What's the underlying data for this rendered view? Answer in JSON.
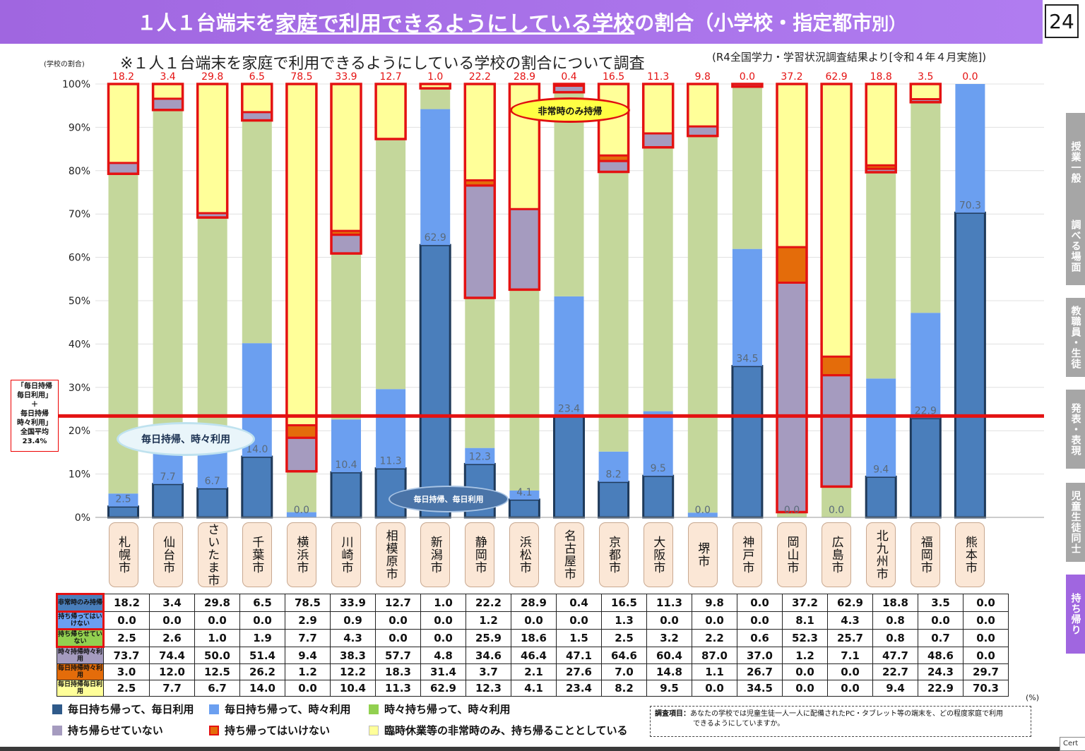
{
  "header": {
    "title_pre": "１人１台端末を",
    "title_hl": "家庭で利用できるようにしている学校",
    "title_post": "の割合（小学校・指定都市",
    "title_tail": "別）",
    "page_num": "24"
  },
  "subtitle": "※１人１台端末を家庭で利用できるようにしている学校の割合について調査",
  "subnote": "(R4全国学力・学習状況調査結果より[令和４年４月実施])",
  "side_tabs": [
    "授業一般",
    "調べる場面",
    "教職員・生徒",
    "発表・表現",
    "児童生徒同士",
    "持ち帰り"
  ],
  "average_box": {
    "lines": [
      "「毎日持帰",
      "毎日利用」",
      "＋",
      "毎日持帰",
      "時々利用」",
      "全国平均",
      "23.4%"
    ]
  },
  "annotations": {
    "oval1": "毎日持帰、時々利用",
    "oval2": "毎日持帰、毎日利用",
    "oval3": "非常時のみ持帰"
  },
  "colors": {
    "daily_daily": "#4a7ebb",
    "daily_some": "#6b9ff0",
    "some_some": "#c4d79b",
    "not_allowed_take": "#a59bbf",
    "forbidden": "#e46c0a",
    "emergency_only": "#ffff99",
    "highlight": "#e41212"
  },
  "chart_data": {
    "type": "bar",
    "stacked": true,
    "ylabel": "(学校の割合)",
    "ylim": [
      0,
      100
    ],
    "yticks": [
      "0%",
      "10%",
      "20%",
      "30%",
      "40%",
      "50%",
      "60%",
      "70%",
      "80%",
      "90%",
      "100%"
    ],
    "unit": "(%)",
    "reference_line": {
      "value": 23.4
    },
    "categories": [
      "札幌市",
      "仙台市",
      "さいたま市",
      "千葉市",
      "横浜市",
      "川崎市",
      "相模原市",
      "新潟市",
      "静岡市",
      "浜松市",
      "名古屋市",
      "京都市",
      "大阪市",
      "堺市",
      "神戸市",
      "岡山市",
      "広島市",
      "北九州市",
      "福岡市",
      "熊本市"
    ],
    "series": [
      {
        "name": "毎日持ち帰って、毎日利用",
        "row_label": "毎日持帰毎日利用",
        "values": [
          2.5,
          7.7,
          6.7,
          14.0,
          0.0,
          10.4,
          11.3,
          62.9,
          12.3,
          4.1,
          23.4,
          8.2,
          9.5,
          0.0,
          34.5,
          0.0,
          0.0,
          9.4,
          22.9,
          70.3
        ]
      },
      {
        "name": "毎日持ち帰って、時々利用",
        "row_label": "毎日持帰時々利用",
        "values": [
          3.0,
          12.0,
          12.5,
          26.2,
          1.2,
          12.2,
          18.3,
          31.4,
          3.7,
          2.1,
          27.6,
          7.0,
          14.8,
          1.1,
          26.7,
          0.0,
          0.0,
          22.7,
          24.3,
          29.7
        ]
      },
      {
        "name": "時々持ち帰って、時々利用",
        "row_label": "時々持帰時々利用",
        "values": [
          73.7,
          74.4,
          50.0,
          51.4,
          9.4,
          38.3,
          57.7,
          4.8,
          34.6,
          46.4,
          47.1,
          64.6,
          60.4,
          87.0,
          37.0,
          1.2,
          7.1,
          47.7,
          48.6,
          0.0
        ]
      },
      {
        "name": "持ち帰らせていない",
        "row_label": "持ち帰らせていない",
        "values": [
          2.5,
          2.6,
          1.0,
          1.9,
          7.7,
          4.3,
          0.0,
          0.0,
          25.9,
          18.6,
          1.5,
          2.5,
          3.2,
          2.2,
          0.6,
          52.3,
          25.7,
          0.8,
          0.7,
          0.0
        ]
      },
      {
        "name": "持ち帰ってはいけない",
        "row_label": "持ち帰ってはいけない",
        "values": [
          0.0,
          0.0,
          0.0,
          0.0,
          2.9,
          0.9,
          0.0,
          0.0,
          1.2,
          0.0,
          0.0,
          1.3,
          0.0,
          0.0,
          0.0,
          8.1,
          4.3,
          0.8,
          0.0,
          0.0
        ]
      },
      {
        "name": "臨時休業等の非常時のみ、持ち帰ることとしている",
        "row_label": "非常時のみ持帰",
        "values": [
          18.2,
          3.4,
          29.8,
          6.5,
          78.5,
          33.9,
          12.7,
          1.0,
          22.2,
          28.9,
          0.4,
          16.5,
          11.3,
          9.8,
          0.0,
          37.2,
          62.9,
          18.8,
          3.5,
          0.0
        ]
      }
    ],
    "table_row_order": [
      5,
      4,
      3,
      2,
      1,
      0
    ],
    "bar_labels_bottom": [
      "2.5",
      "7.7",
      "6.7",
      "14.0",
      "0.0",
      "10.4",
      "11.3",
      "62.9",
      "12.3",
      "4.1",
      "23.4",
      "8.2",
      "9.5",
      "0.0",
      "34.5",
      "0.0",
      "0.0",
      "9.4",
      "22.9",
      "70.3"
    ],
    "bar_labels_top": [
      "18.2",
      "3.4",
      "29.8",
      "6.5",
      "78.5",
      "33.9",
      "12.7",
      "1.0",
      "22.2",
      "28.9",
      "0.4",
      "16.5",
      "11.3",
      "9.8",
      "0.0",
      "37.2",
      "62.9",
      "18.8",
      "3.5",
      "0.0"
    ]
  },
  "survey": {
    "label": "調査項目：",
    "text1": "あなたの学校では児童生徒一人一人に配備されたPC・タブレット等の端末を、どの程度家庭で利用",
    "text2": "できるようにしていますか。"
  },
  "cert": "Cert"
}
